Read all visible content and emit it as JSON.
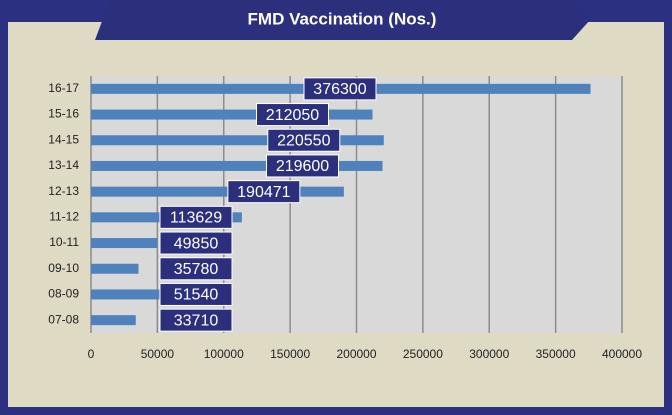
{
  "chart_data": {
    "type": "hbar",
    "title": "FMD Vaccination (Nos.)",
    "categories": [
      "16-17",
      "15-16",
      "14-15",
      "13-14",
      "12-13",
      "11-12",
      "10-11",
      "09-10",
      "08-09",
      "07-08"
    ],
    "values": [
      376300,
      212050,
      220550,
      219600,
      190471,
      113629,
      49850,
      35780,
      51540,
      33710
    ],
    "color": "#4f81bd",
    "xlim": [
      0,
      400000
    ],
    "xticks": [
      0,
      50000,
      100000,
      150000,
      200000,
      250000,
      300000,
      350000,
      400000
    ],
    "grid": true
  }
}
